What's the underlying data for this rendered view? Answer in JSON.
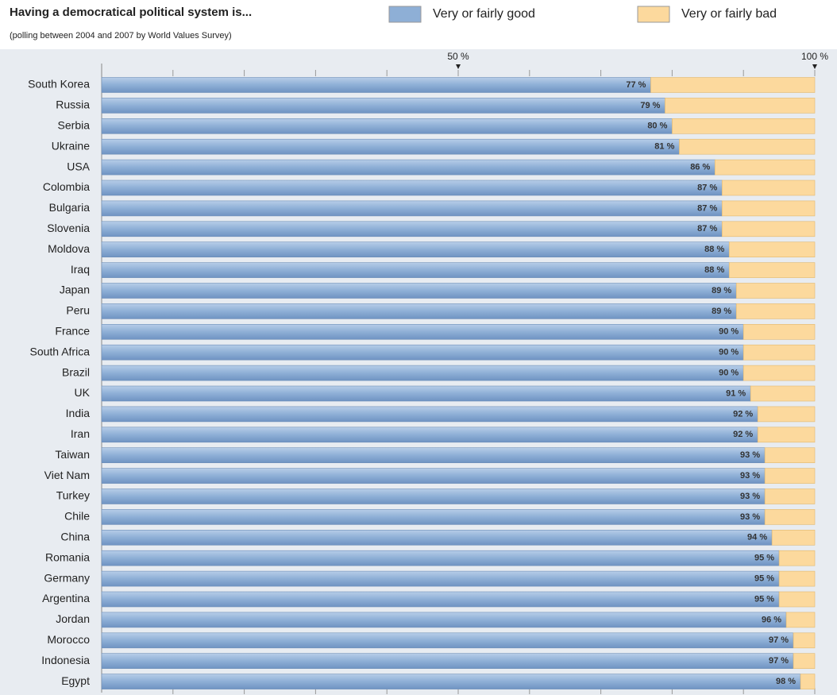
{
  "chart_data": {
    "type": "stacked_barh",
    "title": "Having a democratical political system is...",
    "subtitle": "(polling between 2004 and 2007 by World Values Survey)",
    "categories": [
      "South Korea",
      "Russia",
      "Serbia",
      "Ukraine",
      "USA",
      "Colombia",
      "Bulgaria",
      "Slovenia",
      "Moldova",
      "Iraq",
      "Japan",
      "Peru",
      "France",
      "South Africa",
      "Brazil",
      "UK",
      "India",
      "Iran",
      "Taiwan",
      "Viet Nam",
      "Turkey",
      "Chile",
      "China",
      "Romania",
      "Germany",
      "Argentina",
      "Jordan",
      "Morocco",
      "Indonesia",
      "Egypt"
    ],
    "series": [
      {
        "name": "Very or fairly good",
        "color": "#8eafd6",
        "values": [
          77,
          79,
          80,
          81,
          86,
          87,
          87,
          87,
          88,
          88,
          89,
          89,
          90,
          90,
          90,
          91,
          92,
          92,
          93,
          93,
          93,
          93,
          94,
          95,
          95,
          95,
          96,
          97,
          97,
          98
        ],
        "value_labels": [
          "77 %",
          "79 %",
          "80 %",
          "81 %",
          "86 %",
          "87 %",
          "87 %",
          "87 %",
          "88 %",
          "88 %",
          "89 %",
          "89 %",
          "90 %",
          "90 %",
          "90 %",
          "91 %",
          "92 %",
          "92 %",
          "93 %",
          "93 %",
          "93 %",
          "93 %",
          "94 %",
          "95 %",
          "95 %",
          "95 %",
          "96 %",
          "97 %",
          "97 %",
          "98 %"
        ]
      },
      {
        "name": "Very or fairly bad",
        "color": "#fcd99d",
        "values": [
          23,
          21,
          20,
          19,
          14,
          13,
          13,
          13,
          12,
          12,
          11,
          11,
          10,
          10,
          10,
          9,
          8,
          8,
          7,
          7,
          7,
          7,
          6,
          5,
          5,
          5,
          4,
          3,
          3,
          2
        ]
      }
    ],
    "xlim": [
      0,
      100
    ],
    "xticks": [
      {
        "value": 50,
        "label": "50 %"
      },
      {
        "value": 100,
        "label": "100 %"
      }
    ],
    "xminorticks": [
      10,
      20,
      30,
      40,
      50,
      60,
      70,
      80,
      90,
      100
    ]
  }
}
